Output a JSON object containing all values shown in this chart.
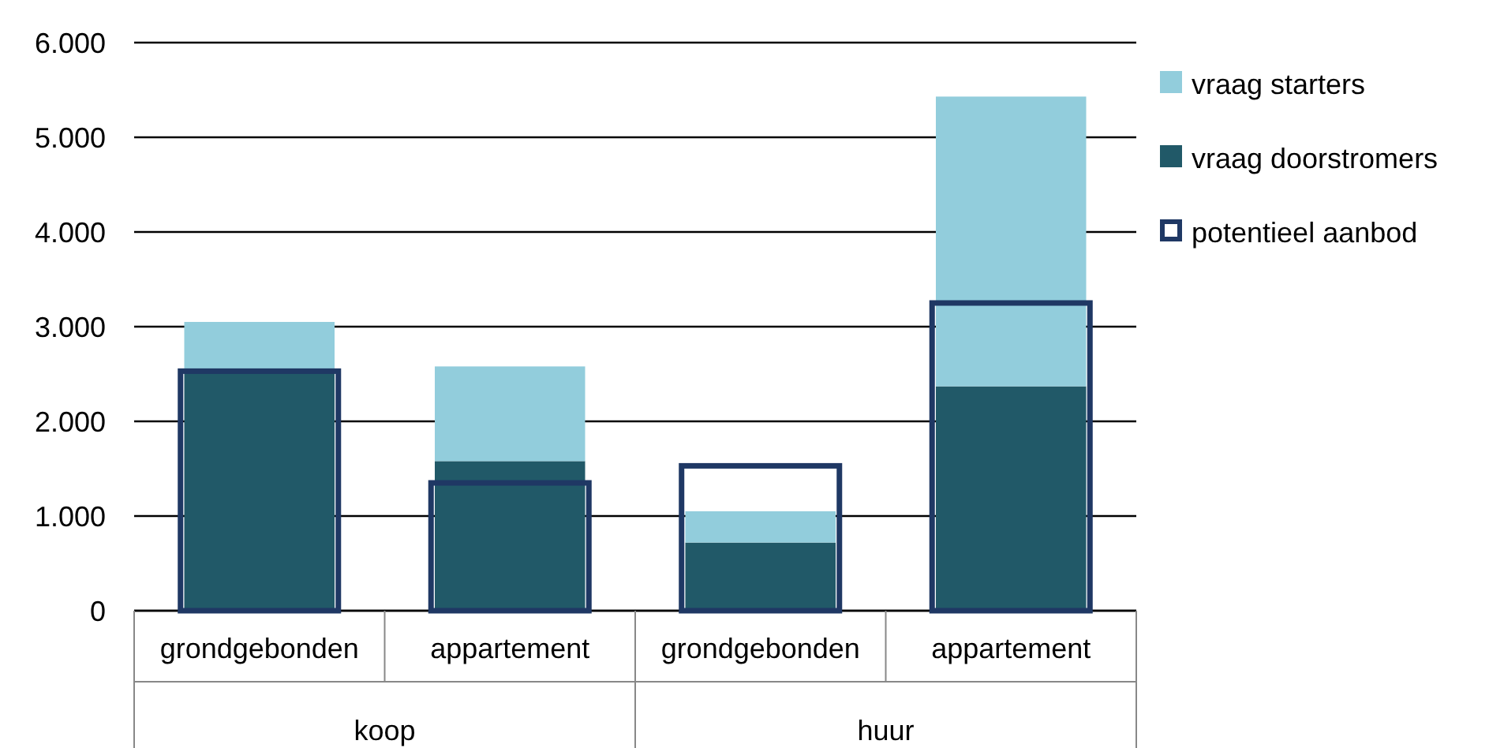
{
  "chart_data": [
    {
      "type": "bar",
      "stacked": true,
      "categories": [
        "grondgebonden",
        "appartement",
        "grondgebonden",
        "appartement"
      ],
      "annotations": [
        "koop",
        "huur"
      ],
      "series": [
        {
          "name": "vraag doorstromers",
          "color": "#215968",
          "values": [
            2530,
            1580,
            720,
            2370
          ]
        },
        {
          "name": "vraag starters",
          "color": "#92cddc",
          "values": [
            520,
            1000,
            330,
            3060
          ]
        }
      ],
      "ylim": [
        0,
        6000
      ],
      "yticks": [
        {
          "value": 0,
          "label": "0"
        },
        {
          "value": 1000,
          "label": "1.000"
        },
        {
          "value": 2000,
          "label": "2.000"
        },
        {
          "value": 3000,
          "label": "3.000"
        },
        {
          "value": 4000,
          "label": "4.000"
        },
        {
          "value": 5000,
          "label": "5.000"
        },
        {
          "value": 6000,
          "label": "6.000"
        }
      ],
      "grid": "y",
      "legend": "right"
    },
    {
      "type": "bar",
      "categories": [
        null,
        null,
        null,
        null
      ],
      "series": [
        {
          "name": "potentieel aanbod",
          "color": "#1f3864",
          "values": [
            2530,
            1350,
            1530,
            3250
          ]
        }
      ],
      "ylim": [
        0,
        6000
      ],
      "tick_labels": false,
      "legend": "right"
    }
  ]
}
